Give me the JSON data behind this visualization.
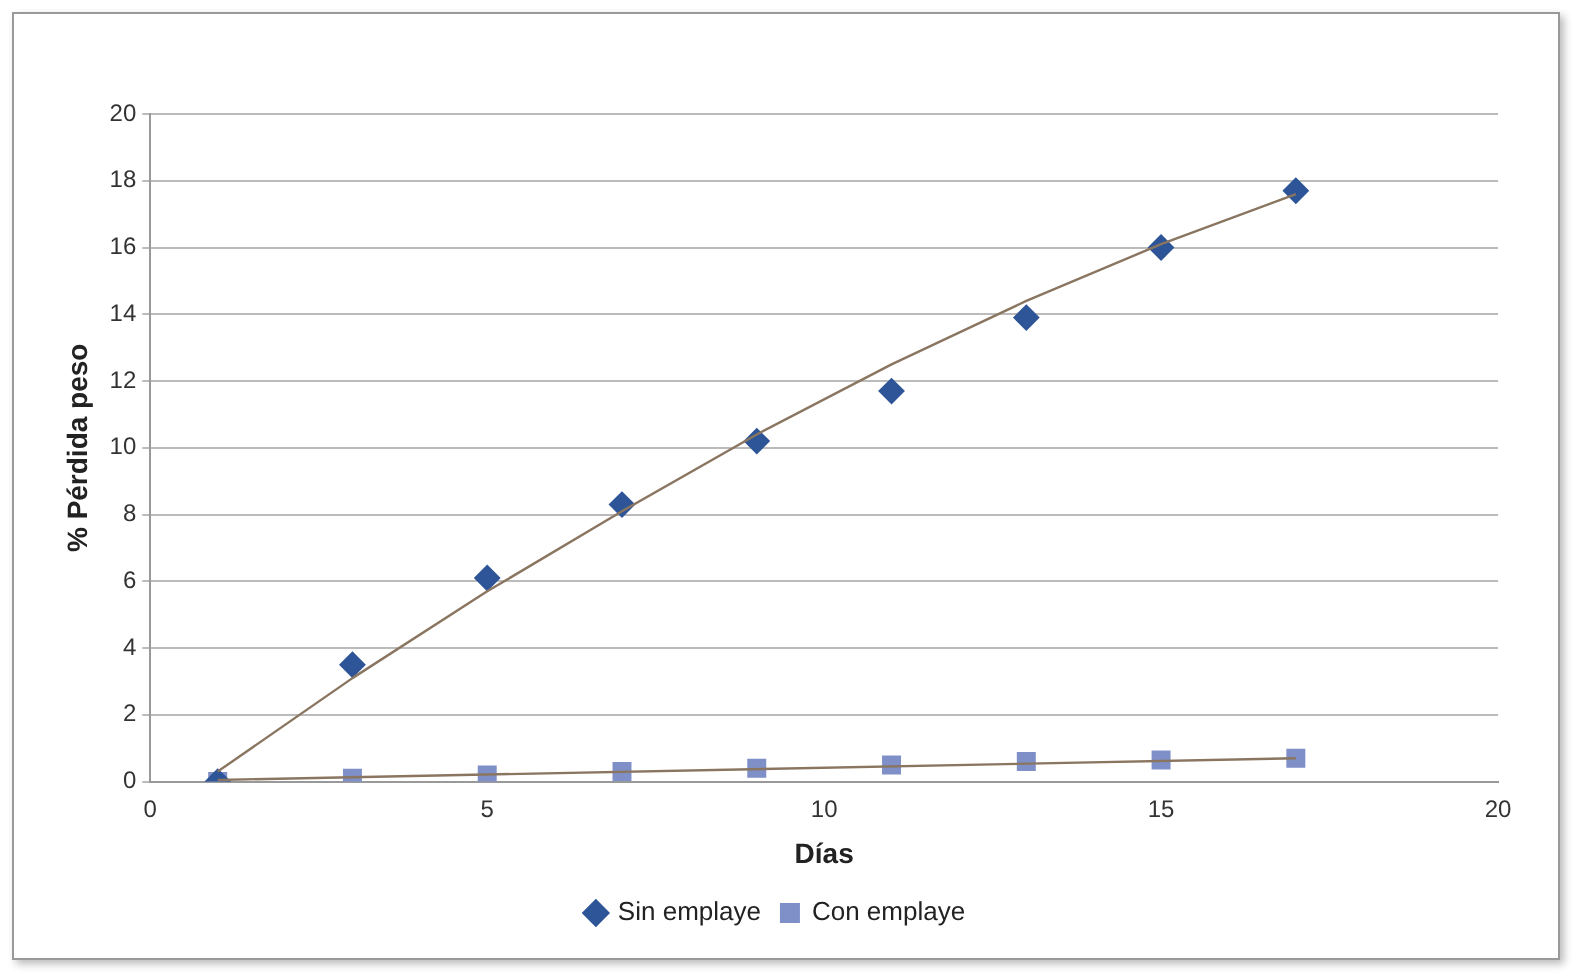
{
  "chart_data": {
    "type": "scatter",
    "xlabel": "Días",
    "ylabel": "% Pérdida peso",
    "xlim": [
      0,
      20
    ],
    "xticks": [
      0,
      5,
      10,
      15,
      20
    ],
    "ylim": [
      0,
      20
    ],
    "yticks": [
      0,
      2,
      4,
      6,
      8,
      10,
      12,
      14,
      16,
      18,
      20
    ],
    "grid": "y",
    "legend": "bottom",
    "series": [
      {
        "name": "Sin emplaye",
        "color": "#2e5597",
        "marker": "diamond",
        "x": [
          1,
          3,
          5,
          7,
          9,
          11,
          13,
          15,
          17
        ],
        "values": [
          0,
          3.5,
          6.1,
          8.3,
          10.2,
          11.7,
          13.9,
          16.0,
          17.7
        ]
      },
      {
        "name": "Con emplaye",
        "color": "#7f8fc8",
        "marker": "square",
        "x": [
          1,
          3,
          5,
          7,
          9,
          11,
          13,
          15,
          17
        ],
        "values": [
          0,
          0.1,
          0.2,
          0.3,
          0.4,
          0.5,
          0.6,
          0.65,
          0.7
        ]
      },
      {
        "type": "line",
        "color": "#8a7560",
        "marker": "none",
        "x": [
          1,
          3,
          5,
          7,
          9,
          11,
          13,
          15,
          17
        ],
        "values": [
          0.3,
          3.1,
          5.7,
          8.1,
          10.4,
          12.5,
          14.4,
          16.1,
          17.6
        ]
      },
      {
        "type": "line",
        "color": "#8a7560",
        "marker": "none",
        "x": [
          1,
          17
        ],
        "values": [
          0.05,
          0.7
        ]
      }
    ]
  }
}
